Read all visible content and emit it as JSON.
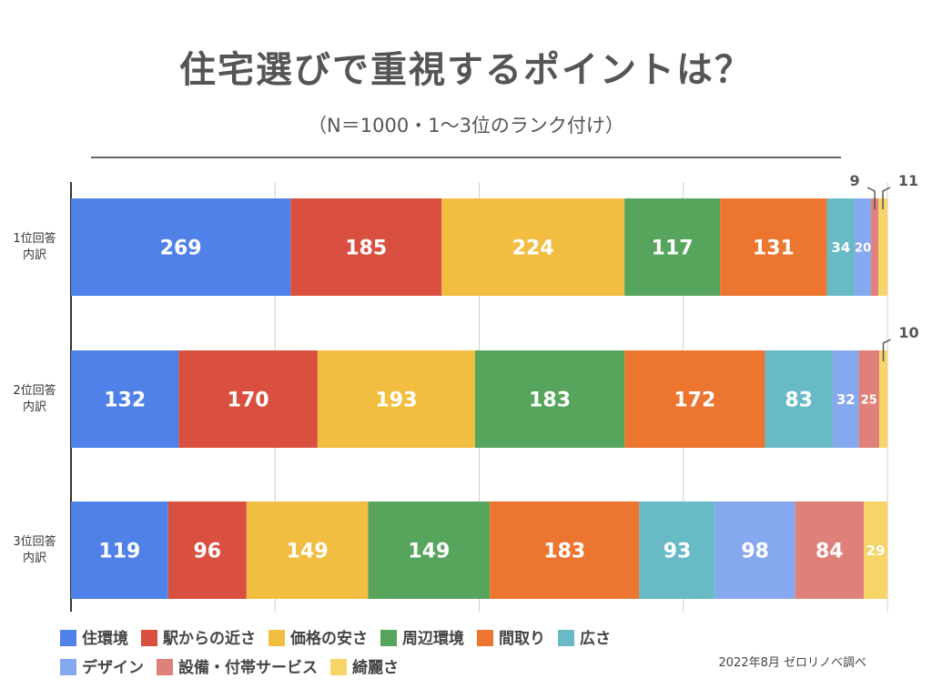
{
  "title": "住宅選びで重視するポイントは？",
  "subtitle": "（N＝1000・1〜3位のランク付け）",
  "source": "2022年8月 ゼロリノベ調べ",
  "chart_data": {
    "type": "bar",
    "orientation": "horizontal",
    "stacked": true,
    "categories": [
      "1位回答\n内訳",
      "2位回答\n内訳",
      "3位回答\n内訳"
    ],
    "xlim": [
      0,
      1000
    ],
    "grid": true,
    "legend_position": "bottom",
    "series": [
      {
        "name": "住環境",
        "color": "#4f81e8",
        "values": [
          269,
          132,
          119
        ]
      },
      {
        "name": "駅からの近さ",
        "color": "#d95040",
        "values": [
          185,
          170,
          96
        ]
      },
      {
        "name": "価格の安さ",
        "color": "#f2be42",
        "values": [
          224,
          193,
          149
        ]
      },
      {
        "name": "周辺環境",
        "color": "#57a55c",
        "values": [
          117,
          183,
          149
        ]
      },
      {
        "name": "間取り",
        "color": "#ec7530",
        "values": [
          131,
          172,
          183
        ]
      },
      {
        "name": "広さ",
        "color": "#67bac6",
        "values": [
          34,
          83,
          93
        ]
      },
      {
        "name": "デザイン",
        "color": "#86a8ef",
        "values": [
          20,
          32,
          98
        ]
      },
      {
        "name": "設備・付帯サービス",
        "color": "#e0807a",
        "values": [
          9,
          25,
          84
        ]
      },
      {
        "name": "綺麗さ",
        "color": "#f6d468",
        "values": [
          11,
          10,
          29
        ]
      }
    ]
  }
}
